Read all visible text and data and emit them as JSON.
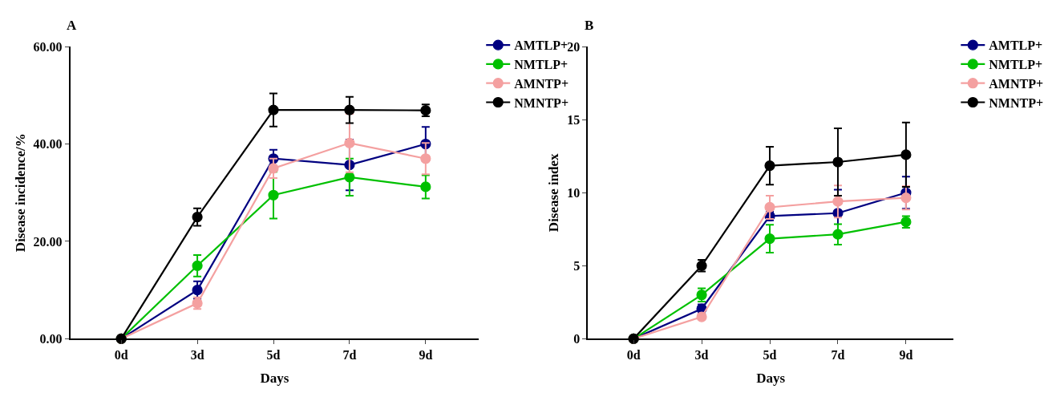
{
  "chart_data": [
    {
      "type": "line",
      "title": "A",
      "xlabel": "Days",
      "ylabel": "Disease incidence/%",
      "categories": [
        "0d",
        "3d",
        "5d",
        "7d",
        "9d"
      ],
      "ylim": [
        0,
        60
      ],
      "yticks": [
        {
          "value": 0,
          "label": "0.00"
        },
        {
          "value": 20,
          "label": "20.00"
        },
        {
          "value": 40,
          "label": "40.00"
        },
        {
          "value": 60,
          "label": "60.00"
        }
      ],
      "marker": "circle",
      "line_style": "solid",
      "legend": "top right",
      "series": [
        {
          "name": "AMTLP+",
          "color": "#000080",
          "values": [
            0,
            10,
            37,
            35.7,
            40
          ],
          "errors": [
            null,
            1.8,
            1.8,
            5.2,
            3.5
          ]
        },
        {
          "name": "NMTLP+",
          "color": "#00c000",
          "values": [
            0,
            15,
            29.5,
            33.2,
            31.2
          ],
          "errors": [
            null,
            2.2,
            4.8,
            3.8,
            2.4
          ]
        },
        {
          "name": "AMNTP+",
          "color": "#f4a0a0",
          "values": [
            0,
            7.3,
            35,
            40.2,
            37
          ],
          "errors": [
            null,
            1.2,
            2,
            6,
            3.2
          ]
        },
        {
          "name": "NMNTP+",
          "color": "#000000",
          "values": [
            0,
            25,
            47,
            47,
            46.9
          ],
          "errors": [
            null,
            1.8,
            3.4,
            2.7,
            1.2
          ]
        }
      ]
    },
    {
      "type": "line",
      "title": "B",
      "xlabel": "Days",
      "ylabel": "Disease index",
      "categories": [
        "0d",
        "3d",
        "5d",
        "7d",
        "9d"
      ],
      "ylim": [
        0,
        20
      ],
      "yticks": [
        0,
        5,
        10,
        15,
        20
      ],
      "marker": "circle",
      "line_style": "solid",
      "legend": "top right",
      "series": [
        {
          "name": "AMTLP+",
          "color": "#000080",
          "values": [
            0,
            2.05,
            8.4,
            8.6,
            10
          ],
          "errors": [
            null,
            0.3,
            0.3,
            1.6,
            1.1
          ]
        },
        {
          "name": "NMTLP+",
          "color": "#00c000",
          "values": [
            0,
            3.0,
            6.85,
            7.15,
            8.0
          ],
          "errors": [
            null,
            0.45,
            0.95,
            0.7,
            0.4
          ]
        },
        {
          "name": "AMNTP+",
          "color": "#f4a0a0",
          "values": [
            0,
            1.5,
            9.0,
            9.4,
            9.65
          ],
          "errors": [
            null,
            0.1,
            0.8,
            1.1,
            0.8
          ]
        },
        {
          "name": "NMNTP+",
          "color": "#000000",
          "values": [
            0,
            5.0,
            11.85,
            12.1,
            12.6
          ],
          "errors": [
            null,
            0.4,
            1.3,
            2.3,
            2.2
          ]
        }
      ]
    }
  ]
}
